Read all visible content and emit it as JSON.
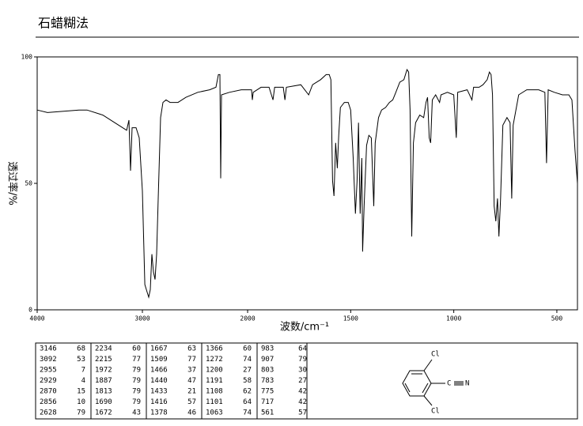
{
  "chart_data": {
    "type": "line",
    "title": "石蜡糊法",
    "xlabel": "波数/cm⁻¹",
    "ylabel": "透过率/%",
    "xlim": [
      4000,
      400
    ],
    "x_scale_break": 2000,
    "xticks": [
      4000,
      3000,
      2000,
      1500,
      1000,
      500
    ],
    "ylim": [
      0,
      100
    ],
    "yticks": [
      0,
      50,
      100
    ],
    "color": "#000000",
    "x": [
      4000,
      3902,
      3602,
      3526,
      3376,
      3263,
      3188,
      3150,
      3128,
      3113,
      3098,
      3060,
      3030,
      3000,
      2977,
      2955,
      2940,
      2925,
      2910,
      2895,
      2880,
      2865,
      2850,
      2827,
      2805,
      2775,
      2737,
      2662,
      2587,
      2474,
      2361,
      2301,
      2278,
      2263,
      2256,
      2248,
      2173,
      2060,
      2000,
      1981,
      1977,
      1973,
      1935,
      1896,
      1877,
      1869,
      1827,
      1819,
      1812,
      1742,
      1723,
      1704,
      1685,
      1646,
      1619,
      1604,
      1596,
      1588,
      1581,
      1573,
      1565,
      1558,
      1550,
      1531,
      1512,
      1500,
      1488,
      1477,
      1469,
      1462,
      1454,
      1446,
      1442,
      1435,
      1423,
      1412,
      1400,
      1388,
      1381,
      1365,
      1350,
      1331,
      1312,
      1296,
      1281,
      1262,
      1242,
      1227,
      1219,
      1212,
      1204,
      1196,
      1185,
      1165,
      1146,
      1135,
      1127,
      1119,
      1112,
      1104,
      1088,
      1069,
      1062,
      1031,
      1000,
      988,
      981,
      935,
      912,
      904,
      877,
      858,
      838,
      827,
      819,
      812,
      804,
      796,
      788,
      781,
      773,
      762,
      742,
      727,
      719,
      712,
      685,
      646,
      588,
      558,
      550,
      542,
      512,
      473,
      442,
      427,
      412,
      400
    ],
    "values": [
      79,
      78,
      79,
      79,
      77,
      74,
      72,
      71,
      75,
      55,
      72,
      72,
      68,
      47,
      10,
      7,
      5,
      8,
      22,
      15,
      12,
      22,
      44,
      76,
      82,
      83,
      82,
      82,
      84,
      86,
      87,
      88,
      93,
      93,
      52,
      85,
      86,
      87,
      87,
      87,
      83,
      86,
      88,
      88,
      83,
      88,
      88,
      83,
      88,
      89,
      87,
      85,
      89,
      91,
      93,
      93,
      91,
      51,
      45,
      66,
      56,
      69,
      80,
      82,
      82,
      79,
      60,
      38,
      51,
      74,
      38,
      60,
      23,
      41,
      65,
      69,
      68,
      41,
      66,
      76,
      79,
      80,
      82,
      83,
      86,
      90,
      91,
      95,
      94,
      79,
      29,
      66,
      74,
      77,
      76,
      82,
      84,
      68,
      66,
      83,
      85,
      82,
      85,
      86,
      85,
      68,
      86,
      87,
      83,
      88,
      88,
      89,
      91,
      94,
      93,
      85,
      41,
      35,
      44,
      29,
      44,
      73,
      76,
      74,
      44,
      73,
      85,
      87,
      87,
      86,
      58,
      87,
      86,
      85,
      85,
      83,
      63,
      50
    ]
  },
  "peak_table": [
    [
      [
        3146,
        68
      ],
      [
        3092,
        53
      ],
      [
        2955,
        7
      ],
      [
        2929,
        4
      ],
      [
        2870,
        15
      ],
      [
        2856,
        10
      ],
      [
        2628,
        79
      ]
    ],
    [
      [
        2234,
        60
      ],
      [
        2215,
        77
      ],
      [
        1972,
        79
      ],
      [
        1887,
        79
      ],
      [
        1813,
        79
      ],
      [
        1690,
        79
      ],
      [
        1672,
        43
      ]
    ],
    [
      [
        1667,
        63
      ],
      [
        1509,
        77
      ],
      [
        1466,
        37
      ],
      [
        1440,
        47
      ],
      [
        1433,
        21
      ],
      [
        1416,
        57
      ],
      [
        1378,
        46
      ]
    ],
    [
      [
        1366,
        60
      ],
      [
        1272,
        74
      ],
      [
        1200,
        27
      ],
      [
        1191,
        58
      ],
      [
        1108,
        62
      ],
      [
        1101,
        64
      ],
      [
        1063,
        74
      ]
    ],
    [
      [
        983,
        64
      ],
      [
        907,
        79
      ],
      [
        803,
        30
      ],
      [
        783,
        27
      ],
      [
        775,
        42
      ],
      [
        717,
        42
      ],
      [
        561,
        57
      ]
    ]
  ],
  "structure": {
    "substituent_top": "Cl",
    "substituent_bottom": "Cl",
    "nitrile_carbon": "C",
    "nitrile_nitrogen": "N"
  }
}
